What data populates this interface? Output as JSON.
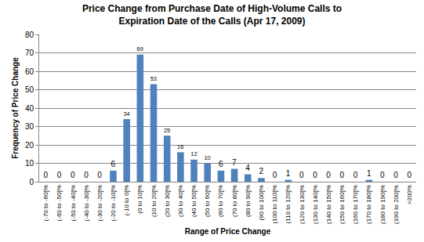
{
  "chart_data": {
    "type": "bar",
    "title": "Price Change from Purchase Date of High-Volume Calls to\nExpiration Date of the Calls (Apr 17, 2009)",
    "x_label": "Range of Price Change",
    "y_label": "Frequency of Price Change",
    "categories": [
      "(-70 to -60]%",
      "(-60 to -50]%",
      "(-50 to -40]%",
      "(-40 to -30]%",
      "(-30 to -20]%",
      "(-20 to -10]%",
      "(-10 to 0]%",
      "(0 to 10]%",
      "(10 to 20]%",
      "(20 to 30]%",
      "(30 to 40]%",
      "(40 to 50]%",
      "(50 to 60]%",
      "(60 to 70]%",
      "(70 to 80]%",
      "(80 to 90]%",
      "(90 to 100]%",
      "(100 to 110]%",
      "(110 to 120]%",
      "(120 to 130]%",
      "(130 to 140]%",
      "(140 to 150]%",
      "(150 to 160]%",
      "(160 to 170]%",
      "(170 to 180]%",
      "(180 to 190]%",
      "(190 to 200]%",
      ">200%"
    ],
    "values": [
      0,
      0,
      0,
      0,
      0,
      6,
      34,
      69,
      53,
      25,
      16,
      12,
      10,
      6,
      7,
      4,
      2,
      0,
      1,
      0,
      0,
      0,
      0,
      0,
      1,
      0,
      0,
      0
    ],
    "color": "#4f81bd",
    "ylim": [
      0,
      80
    ],
    "yticks": [
      0,
      10,
      20,
      30,
      40,
      50,
      60,
      70,
      80
    ],
    "grid": true,
    "data_labels": true
  }
}
